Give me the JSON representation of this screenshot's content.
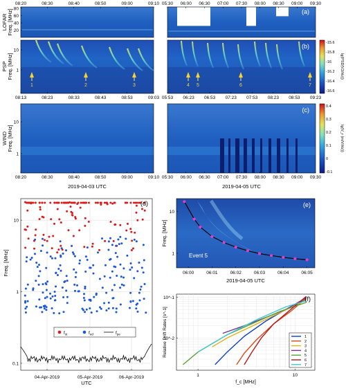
{
  "chart_data": [
    {
      "panel": "(a)",
      "type": "heatmap",
      "ylabel": "LOFAR\nFreq. [MHz]",
      "yticks": [
        20,
        40,
        60,
        80
      ],
      "top_ticks_left": [
        "08:20",
        "08:30",
        "08:40",
        "08:50",
        "09:00",
        "09:10"
      ],
      "top_ticks_right": [
        "05:30",
        "06:00",
        "06:30",
        "07:00",
        "07:30",
        "08:00",
        "08:30",
        "09:00",
        "09:30"
      ]
    },
    {
      "panel": "(b)",
      "type": "heatmap",
      "ylabel": "PSP\nFreq. [MHz]",
      "yticks": [
        "1",
        "10"
      ],
      "bottom_ticks_left": [
        "08:13",
        "08:23",
        "08:33",
        "08:43",
        "08:53",
        "09:03"
      ],
      "bottom_ticks_right": [
        "05:53",
        "06:23",
        "06:53",
        "07:23",
        "07:53",
        "08:23",
        "08:53",
        "09:23"
      ],
      "event_markers": [
        "1",
        "2",
        "3",
        "4",
        "5",
        "6",
        "7"
      ],
      "colorbar": {
        "label": "lg(PSD(V2/Hz))",
        "ticks": [
          "-15.6",
          "-15.8",
          "-16",
          "-16.2",
          "-16.4",
          "-16.6"
        ],
        "range": [
          -16.6,
          -15.6
        ]
      }
    },
    {
      "panel": "(c)",
      "type": "heatmap",
      "ylabel": "WIND\nFreq. [MHz]",
      "yticks": [
        "1",
        "10"
      ],
      "bottom_ticks_left": [
        "08:20",
        "08:30",
        "08:40",
        "08:50",
        "09:00",
        "09:10"
      ],
      "bottom_ticks_right": [
        "05:30",
        "06:00",
        "06:30",
        "07:00",
        "07:30",
        "08:00",
        "08:30",
        "09:00",
        "09:30"
      ],
      "xlabel_left": "2019-04-03 UTC",
      "xlabel_right": "2019-04-05 UTC",
      "colorbar": {
        "label": "lg(V_r (m/V/Hz))",
        "ticks": [
          "0.4",
          "0.3",
          "0.2",
          "0.1",
          "0",
          "-0.1"
        ],
        "range": [
          -0.1,
          0.4
        ]
      }
    },
    {
      "panel": "(d)",
      "type": "scatter",
      "ylabel": "Freq. [MHz]",
      "xlabel": "UTC",
      "yscale": "log",
      "ylim": [
        0.08,
        20
      ],
      "yticks": [
        "0.1",
        "1",
        "10"
      ],
      "xticks": [
        "04-Apr-2019",
        "05-Apr-2019",
        "06-Apr-2019"
      ],
      "legend": [
        "f_st",
        "f_ed",
        "f_pe"
      ],
      "legend_placement": "bottom-center",
      "series": [
        {
          "name": "f_st",
          "color": "#d81c1c",
          "x_range": [
            "2019-04-03",
            "2019-04-06"
          ],
          "y_range": [
            3.5,
            18
          ]
        },
        {
          "name": "f_ed",
          "color": "#1c56d8",
          "x_range": [
            "2019-04-03",
            "2019-04-06"
          ],
          "y_range": [
            0.5,
            6
          ]
        },
        {
          "name": "f_pe",
          "color": "#000000",
          "x_range": [
            "2019-04-03",
            "2019-04-06"
          ],
          "y_range": [
            0.1,
            0.18
          ]
        }
      ]
    },
    {
      "panel": "(e)",
      "type": "heatmap",
      "ylabel": "Freq. [MHz]",
      "xlabel": "2019-04-05 UTC",
      "yticks": [
        "1",
        "10"
      ],
      "xticks": [
        "06:00",
        "06:01",
        "06:02",
        "06:03",
        "06:04",
        "06:05"
      ],
      "annotation": "Event 5",
      "fit_points": [
        {
          "x": "05:59:50",
          "y": 17.0
        },
        {
          "x": "06:00:15",
          "y": 6.5
        },
        {
          "x": "06:00:30",
          "y": 4.2
        },
        {
          "x": "06:01:00",
          "y": 2.5
        },
        {
          "x": "06:01:30",
          "y": 1.8
        },
        {
          "x": "06:02:00",
          "y": 1.4
        },
        {
          "x": "06:02:30",
          "y": 1.15
        },
        {
          "x": "06:03:00",
          "y": 0.98
        },
        {
          "x": "06:03:30",
          "y": 0.88
        },
        {
          "x": "06:04:00",
          "y": 0.8
        },
        {
          "x": "06:04:30",
          "y": 0.74
        },
        {
          "x": "06:05:00",
          "y": 0.7
        }
      ]
    },
    {
      "panel": "(f)",
      "type": "line",
      "xlabel": "f_c [MHz]",
      "ylabel": "Relative Drift Rates [s^-1]",
      "xscale": "log",
      "yscale": "log",
      "xlim": [
        0.6,
        16
      ],
      "ylim": [
        0.0016,
        0.12
      ],
      "xticks": [
        "1",
        "10"
      ],
      "yticks": [
        "10^-2",
        "10^-1"
      ],
      "legend_placement": "bottom-right",
      "series": [
        {
          "name": "1",
          "color": "#0b3cc8",
          "points": [
            [
              1.5,
              0.0022
            ],
            [
              2.0,
              0.0045
            ],
            [
              3.0,
              0.011
            ],
            [
              5.0,
              0.026
            ],
            [
              8.0,
              0.05
            ],
            [
              13.0,
              0.09
            ]
          ]
        },
        {
          "name": "2",
          "color": "#d24a17",
          "points": [
            [
              2.5,
              0.0022
            ],
            [
              3.0,
              0.0042
            ],
            [
              4.0,
              0.009
            ],
            [
              6.0,
              0.022
            ],
            [
              9.0,
              0.045
            ],
            [
              13.0,
              0.095
            ]
          ]
        },
        {
          "name": "3",
          "color": "#e0b21a",
          "points": [
            [
              1.4,
              0.006
            ],
            [
              2.0,
              0.01
            ],
            [
              4.0,
              0.022
            ],
            [
              7.0,
              0.042
            ],
            [
              13.0,
              0.085
            ]
          ]
        },
        {
          "name": "4",
          "color": "#7a2fa0",
          "points": [
            [
              1.8,
              0.013
            ],
            [
              3.0,
              0.02
            ],
            [
              5.0,
              0.032
            ],
            [
              8.0,
              0.05
            ],
            [
              13.0,
              0.098
            ]
          ]
        },
        {
          "name": "5",
          "color": "#58a33b",
          "points": [
            [
              0.7,
              0.0022
            ],
            [
              1.0,
              0.0045
            ],
            [
              2.0,
              0.012
            ],
            [
              4.0,
              0.025
            ],
            [
              7.0,
              0.045
            ],
            [
              13.0,
              0.075
            ]
          ]
        },
        {
          "name": "6",
          "color": "#b31a1a",
          "points": [
            [
              3.0,
              0.0022
            ],
            [
              3.6,
              0.0045
            ],
            [
              4.5,
              0.01
            ],
            [
              6.0,
              0.022
            ],
            [
              9.0,
              0.05
            ],
            [
              13.0,
              0.105
            ]
          ]
        },
        {
          "name": "7",
          "color": "#3ec6cd",
          "points": [
            [
              1.0,
              0.0045
            ],
            [
              2.0,
              0.012
            ],
            [
              4.0,
              0.028
            ],
            [
              8.0,
              0.058
            ],
            [
              13.0,
              0.082
            ]
          ]
        }
      ]
    }
  ]
}
